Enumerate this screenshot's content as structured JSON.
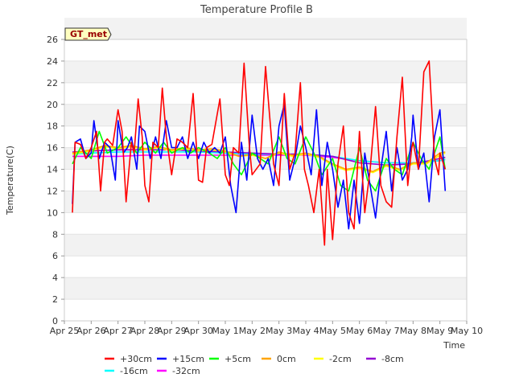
{
  "chart_data": {
    "type": "line",
    "title": "Temperature Profile B",
    "xlabel": "Time",
    "ylabel": "Temperature(C)",
    "station_label": "GT_met",
    "xlim": [
      0,
      15
    ],
    "ylim": [
      0,
      26
    ],
    "x_ticks": [
      {
        "v": 0,
        "label": "Apr 25"
      },
      {
        "v": 1,
        "label": "Apr 26"
      },
      {
        "v": 2,
        "label": "Apr 27"
      },
      {
        "v": 3,
        "label": "Apr 28"
      },
      {
        "v": 4,
        "label": "Apr 29"
      },
      {
        "v": 5,
        "label": "Apr 30"
      },
      {
        "v": 6,
        "label": "May 1"
      },
      {
        "v": 7,
        "label": "May 2"
      },
      {
        "v": 8,
        "label": "May 3"
      },
      {
        "v": 9,
        "label": "May 4"
      },
      {
        "v": 10,
        "label": "May 5"
      },
      {
        "v": 11,
        "label": "May 6"
      },
      {
        "v": 12,
        "label": "May 7"
      },
      {
        "v": 13,
        "label": "May 8"
      },
      {
        "v": 14,
        "label": "May 9"
      },
      {
        "v": 15,
        "label": "May 10"
      }
    ],
    "y_ticks": [
      0,
      2,
      4,
      6,
      8,
      10,
      12,
      14,
      16,
      18,
      20,
      22,
      24,
      26
    ],
    "grid": true,
    "legend_position": "bottom",
    "series": [
      {
        "name": "+30cm",
        "color": "#ff0000",
        "x": [
          0.3,
          0.4,
          0.6,
          0.8,
          1.0,
          1.2,
          1.35,
          1.5,
          1.6,
          1.8,
          2.0,
          2.15,
          2.3,
          2.5,
          2.6,
          2.75,
          2.9,
          3.0,
          3.15,
          3.3,
          3.5,
          3.65,
          3.8,
          4.0,
          4.2,
          4.4,
          4.6,
          4.8,
          5.0,
          5.15,
          5.3,
          5.5,
          5.8,
          6.0,
          6.15,
          6.3,
          6.5,
          6.7,
          6.9,
          7.0,
          7.3,
          7.5,
          7.8,
          7.95,
          8.0,
          8.2,
          8.4,
          8.6,
          8.8,
          8.95,
          9.1,
          9.3,
          9.5,
          9.7,
          9.8,
          10.0,
          10.2,
          10.4,
          10.6,
          10.8,
          11.0,
          11.2,
          11.4,
          11.6,
          11.8,
          12.0,
          12.2,
          12.4,
          12.6,
          12.8,
          12.95,
          13.0,
          13.2,
          13.4,
          13.6,
          13.8,
          13.95,
          14.0,
          14.2
        ],
        "y": [
          10.0,
          16.5,
          16.3,
          15.0,
          16.0,
          17.5,
          12.0,
          16.5,
          16.8,
          16.2,
          19.5,
          17.5,
          11.0,
          16.5,
          15.5,
          20.5,
          17.0,
          12.5,
          11.0,
          16.5,
          16.0,
          21.5,
          17.0,
          13.5,
          16.8,
          16.5,
          16.0,
          21.0,
          13.0,
          12.8,
          16.0,
          16.3,
          20.5,
          13.5,
          12.5,
          16.0,
          15.5,
          23.8,
          16.0,
          13.5,
          14.5,
          23.5,
          14.5,
          13.0,
          12.5,
          21.0,
          14.0,
          15.5,
          22.0,
          14.0,
          12.5,
          10.0,
          14.0,
          7.0,
          14.0,
          7.5,
          14.5,
          18.0,
          10.0,
          8.5,
          17.5,
          10.0,
          14.0,
          19.8,
          12.5,
          11.0,
          10.5,
          17.0,
          22.5,
          12.5,
          16.0,
          16.5,
          14.0,
          23.0,
          24.0,
          15.0,
          13.5,
          15.5,
          14.0
        ]
      },
      {
        "name": "+15cm",
        "color": "#0000ff",
        "x": [
          0.3,
          0.4,
          0.6,
          0.8,
          1.0,
          1.1,
          1.3,
          1.5,
          1.7,
          1.9,
          2.0,
          2.2,
          2.35,
          2.5,
          2.7,
          2.8,
          3.0,
          3.2,
          3.4,
          3.6,
          3.8,
          4.0,
          4.2,
          4.4,
          4.6,
          4.8,
          5.0,
          5.2,
          5.4,
          5.6,
          5.8,
          6.0,
          6.2,
          6.4,
          6.6,
          6.8,
          7.0,
          7.2,
          7.4,
          7.6,
          7.8,
          8.0,
          8.2,
          8.4,
          8.6,
          8.8,
          9.0,
          9.2,
          9.4,
          9.6,
          9.8,
          10.0,
          10.2,
          10.4,
          10.6,
          10.8,
          11.0,
          11.2,
          11.4,
          11.6,
          11.8,
          12.0,
          12.2,
          12.4,
          12.6,
          12.8,
          12.95,
          13.0,
          13.2,
          13.4,
          13.6,
          13.8,
          14.0,
          14.2
        ],
        "y": [
          10.8,
          16.5,
          16.8,
          15.0,
          15.5,
          18.5,
          15.0,
          16.5,
          16.0,
          13.0,
          18.5,
          15.5,
          16.0,
          17.0,
          14.0,
          18.0,
          17.5,
          15.0,
          17.0,
          15.0,
          18.5,
          16.0,
          16.0,
          17.0,
          15.0,
          16.5,
          15.0,
          16.5,
          15.5,
          16.0,
          15.5,
          17.0,
          12.5,
          10.0,
          16.5,
          13.0,
          19.0,
          15.0,
          14.0,
          15.0,
          12.5,
          18.0,
          20.0,
          13.0,
          15.0,
          18.0,
          16.0,
          13.5,
          19.5,
          12.5,
          16.5,
          14.0,
          10.5,
          13.0,
          8.5,
          13.0,
          9.0,
          15.5,
          12.5,
          9.5,
          14.0,
          17.5,
          12.0,
          16.0,
          13.0,
          14.0,
          17.0,
          19.0,
          14.0,
          15.5,
          11.0,
          17.0,
          19.5,
          12.0
        ]
      },
      {
        "name": "+5cm",
        "color": "#00ff00",
        "x": [
          0.3,
          0.6,
          1.0,
          1.3,
          1.6,
          2.0,
          2.3,
          2.7,
          3.0,
          3.4,
          3.7,
          4.0,
          4.4,
          4.7,
          5.0,
          5.4,
          5.7,
          6.0,
          6.3,
          6.6,
          7.0,
          7.3,
          7.6,
          8.0,
          8.3,
          8.6,
          9.0,
          9.3,
          9.6,
          10.0,
          10.3,
          10.6,
          11.0,
          11.3,
          11.6,
          12.0,
          12.3,
          12.6,
          13.0,
          13.3,
          13.6,
          14.0,
          14.2
        ],
        "y": [
          14.5,
          16.0,
          15.0,
          17.5,
          15.5,
          16.0,
          17.0,
          15.5,
          16.5,
          15.5,
          16.5,
          15.5,
          16.0,
          15.5,
          16.0,
          15.5,
          15.0,
          16.0,
          14.5,
          13.5,
          15.5,
          15.0,
          14.5,
          17.0,
          15.0,
          14.5,
          17.0,
          15.5,
          13.5,
          15.0,
          12.5,
          12.0,
          16.0,
          13.0,
          12.0,
          15.0,
          14.0,
          13.5,
          16.5,
          15.0,
          14.0,
          17.0,
          14.0
        ]
      },
      {
        "name": "0cm",
        "color": "#ffa500",
        "x": [
          0.3,
          1.0,
          1.5,
          2.0,
          2.5,
          3.0,
          3.5,
          4.0,
          4.5,
          5.0,
          5.5,
          6.0,
          6.5,
          7.0,
          7.5,
          8.0,
          8.5,
          9.0,
          9.5,
          10.0,
          10.5,
          11.0,
          11.5,
          12.0,
          12.5,
          13.0,
          13.5,
          14.0,
          14.2
        ],
        "y": [
          15.5,
          15.8,
          16.2,
          16.0,
          16.2,
          15.9,
          16.1,
          15.8,
          16.0,
          15.8,
          15.9,
          15.7,
          15.2,
          15.4,
          15.0,
          15.6,
          15.3,
          15.5,
          15.2,
          14.5,
          14.0,
          14.2,
          13.8,
          14.4,
          14.0,
          14.6,
          14.6,
          15.5,
          15.6
        ]
      },
      {
        "name": "-2cm",
        "color": "#ffff00",
        "x": [
          0.3,
          1.0,
          1.5,
          2.0,
          2.5,
          3.0,
          3.5,
          4.0,
          4.5,
          5.0,
          5.5,
          6.0,
          6.5,
          7.0,
          7.5,
          8.0,
          8.5,
          9.0,
          9.5,
          10.0,
          10.5,
          11.0,
          11.5,
          12.0,
          12.5,
          13.0,
          13.5,
          14.0,
          14.2
        ],
        "y": [
          15.4,
          15.7,
          16.1,
          15.9,
          16.1,
          15.8,
          16.0,
          15.7,
          15.9,
          15.7,
          15.8,
          15.6,
          15.2,
          15.3,
          15.0,
          15.5,
          15.2,
          15.4,
          15.1,
          14.4,
          13.9,
          14.1,
          13.7,
          14.3,
          13.9,
          14.5,
          14.5,
          15.3,
          15.5
        ]
      },
      {
        "name": "-8cm",
        "color": "#9400d3",
        "x": [
          0.3,
          1.0,
          2.0,
          3.0,
          4.0,
          5.0,
          6.0,
          7.0,
          8.0,
          9.0,
          10.0,
          11.0,
          12.0,
          13.0,
          14.0,
          14.2
        ],
        "y": [
          15.6,
          15.7,
          15.8,
          15.8,
          15.8,
          15.7,
          15.6,
          15.5,
          15.4,
          15.4,
          15.2,
          14.6,
          14.4,
          14.5,
          15.0,
          15.1
        ]
      },
      {
        "name": "-16cm",
        "color": "#00ffff",
        "x": [
          0.3,
          1.0,
          2.0,
          3.0,
          4.0,
          5.0,
          6.0,
          7.0,
          8.0,
          9.0,
          10.0,
          11.0,
          12.0,
          13.0,
          14.0,
          14.2
        ],
        "y": [
          15.4,
          15.5,
          15.6,
          15.6,
          15.6,
          15.6,
          15.5,
          15.4,
          15.4,
          15.4,
          15.2,
          14.8,
          14.6,
          14.6,
          14.8,
          14.9
        ]
      },
      {
        "name": "-32cm",
        "color": "#ff00ff",
        "x": [
          0.3,
          1.0,
          2.0,
          3.0,
          4.0,
          5.0,
          6.0,
          7.0,
          8.0,
          9.0,
          10.0,
          11.0,
          12.0,
          13.0,
          14.0,
          14.2
        ],
        "y": [
          15.2,
          15.2,
          15.2,
          15.3,
          15.3,
          15.3,
          15.3,
          15.3,
          15.3,
          15.3,
          15.1,
          14.8,
          14.6,
          14.6,
          14.8,
          14.9
        ]
      }
    ]
  }
}
